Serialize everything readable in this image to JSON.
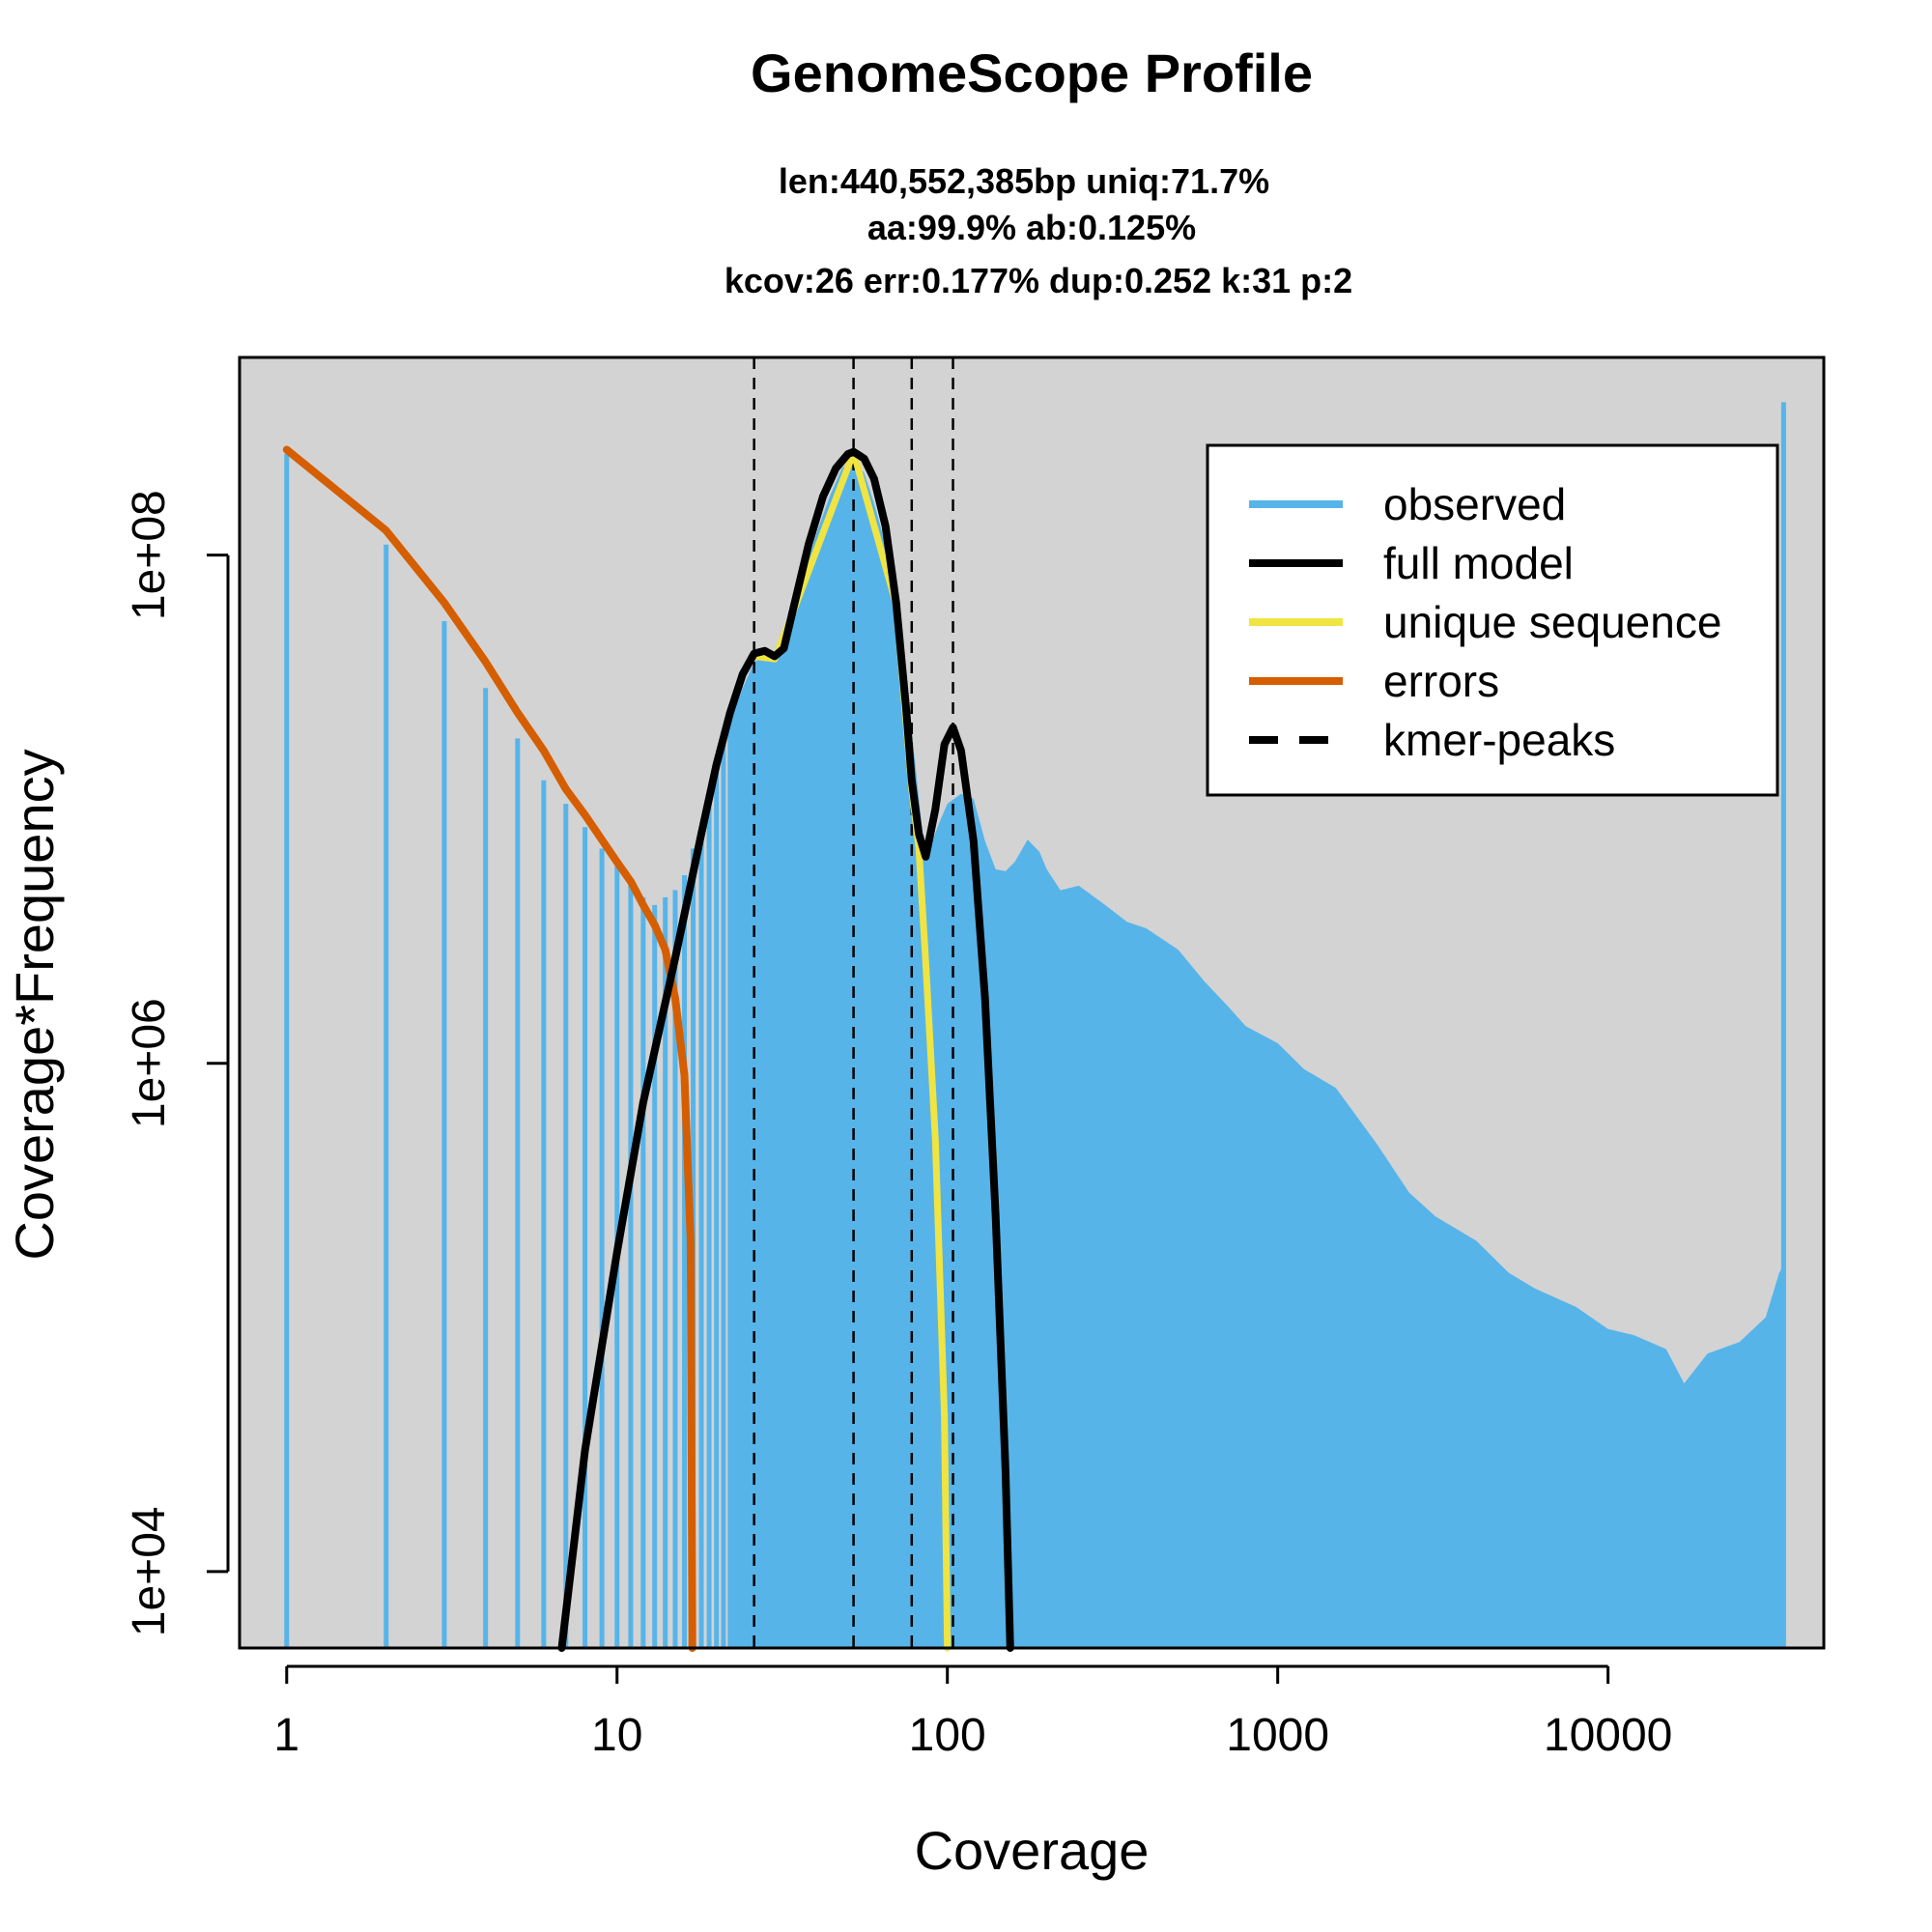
{
  "chart_data": {
    "type": "area",
    "title": "GenomeScope Profile",
    "subtitle_lines": [
      "len:440,552,385bp uniq:71.7%",
      "aa:99.9% ab:0.125%",
      "kcov:26 err:0.177%  dup:0.252  k:31 p:2"
    ],
    "xlabel": "Coverage",
    "ylabel": "Coverage*Frequency",
    "x_scale": "log",
    "y_scale": "log",
    "xlim": [
      0.72,
      45000
    ],
    "ylim": [
      5000,
      600000000
    ],
    "x_ticks": [
      1,
      10,
      100,
      1000,
      10000
    ],
    "x_tick_labels": [
      "1",
      "10",
      "100",
      "1000",
      "10000"
    ],
    "y_ticks": [
      10000,
      1000000,
      100000000
    ],
    "y_tick_labels": [
      "1e+04",
      "1e+06",
      "1e+08"
    ],
    "background": "#d3d3d3",
    "legend_position": "top-right",
    "legend": [
      {
        "label": "observed",
        "color": "#56b4e9",
        "style": "solid"
      },
      {
        "label": "full model",
        "color": "#000000",
        "style": "solid"
      },
      {
        "label": "unique sequence",
        "color": "#f0e442",
        "style": "solid"
      },
      {
        "label": "errors",
        "color": "#d55e00",
        "style": "solid"
      },
      {
        "label": "kmer-peaks",
        "color": "#000000",
        "style": "dashed"
      }
    ],
    "kmer_peaks": [
      26,
      52,
      78,
      104
    ],
    "observed_discrete": [
      [
        1,
        250000000
      ],
      [
        2,
        110000000
      ],
      [
        3,
        55000000
      ],
      [
        4,
        30000000
      ],
      [
        5,
        19000000
      ],
      [
        6,
        13000000
      ],
      [
        7,
        10500000
      ],
      [
        8,
        8500000
      ],
      [
        9,
        7000000
      ],
      [
        10,
        6000000
      ],
      [
        11,
        5200000
      ],
      [
        12,
        4500000
      ],
      [
        13,
        4200000
      ],
      [
        14,
        4500000
      ],
      [
        15,
        4800000
      ],
      [
        16,
        5500000
      ],
      [
        17,
        7000000
      ],
      [
        18,
        8500000
      ],
      [
        19,
        11000000
      ],
      [
        20,
        14000000
      ],
      [
        21,
        18000000
      ],
      [
        22,
        22000000
      ]
    ],
    "observed_profile": [
      [
        22,
        22000000
      ],
      [
        24,
        30000000
      ],
      [
        26,
        38000000
      ],
      [
        28,
        40000000
      ],
      [
        30,
        42000000
      ],
      [
        32,
        48000000
      ],
      [
        36,
        75000000
      ],
      [
        40,
        120000000
      ],
      [
        44,
        170000000
      ],
      [
        48,
        220000000
      ],
      [
        52,
        240000000
      ],
      [
        56,
        210000000
      ],
      [
        60,
        160000000
      ],
      [
        65,
        110000000
      ],
      [
        70,
        60000000
      ],
      [
        75,
        30000000
      ],
      [
        80,
        15000000
      ],
      [
        85,
        7000000
      ],
      [
        90,
        7500000
      ],
      [
        95,
        9000000
      ],
      [
        100,
        10500000
      ],
      [
        110,
        11500000
      ],
      [
        120,
        11000000
      ],
      [
        130,
        7500000
      ],
      [
        140,
        5800000
      ],
      [
        150,
        5700000
      ],
      [
        160,
        6200000
      ],
      [
        175,
        7600000
      ],
      [
        190,
        6800000
      ],
      [
        200,
        5800000
      ],
      [
        220,
        4800000
      ],
      [
        250,
        5000000
      ],
      [
        300,
        4200000
      ],
      [
        350,
        3600000
      ],
      [
        400,
        3400000
      ],
      [
        500,
        2800000
      ],
      [
        600,
        2100000
      ],
      [
        700,
        1700000
      ],
      [
        800,
        1400000
      ],
      [
        1000,
        1200000
      ],
      [
        1200,
        950000
      ],
      [
        1500,
        800000
      ],
      [
        2000,
        480000
      ],
      [
        2500,
        310000
      ],
      [
        3000,
        250000
      ],
      [
        4000,
        200000
      ],
      [
        5000,
        150000
      ],
      [
        6000,
        130000
      ],
      [
        8000,
        110000
      ],
      [
        10000,
        90000
      ],
      [
        12000,
        85000
      ],
      [
        15000,
        75000
      ],
      [
        17000,
        55000
      ],
      [
        20000,
        72000
      ],
      [
        25000,
        80000
      ],
      [
        30000,
        100000
      ],
      [
        33000,
        150000
      ],
      [
        34000,
        160000
      ]
    ],
    "observed_spike": [
      34000,
      400000000
    ],
    "full_model": [
      [
        6.8,
        5000
      ],
      [
        8,
        30000
      ],
      [
        10,
        180000
      ],
      [
        12,
        700000
      ],
      [
        15,
        2600000
      ],
      [
        18,
        8000000
      ],
      [
        20,
        15000000
      ],
      [
        22,
        24000000
      ],
      [
        24,
        34000000
      ],
      [
        26,
        41000000
      ],
      [
        28,
        42000000
      ],
      [
        30,
        40000000
      ],
      [
        32,
        43000000
      ],
      [
        34,
        60000000
      ],
      [
        38,
        110000000
      ],
      [
        42,
        170000000
      ],
      [
        46,
        220000000
      ],
      [
        50,
        250000000
      ],
      [
        52,
        255000000
      ],
      [
        56,
        240000000
      ],
      [
        60,
        200000000
      ],
      [
        65,
        130000000
      ],
      [
        70,
        65000000
      ],
      [
        75,
        25000000
      ],
      [
        78,
        13000000
      ],
      [
        82,
        8000000
      ],
      [
        86,
        6500000
      ],
      [
        92,
        10000000
      ],
      [
        98,
        18000000
      ],
      [
        104,
        21000000
      ],
      [
        110,
        17000000
      ],
      [
        120,
        7500000
      ],
      [
        130,
        1800000
      ],
      [
        140,
        250000
      ],
      [
        150,
        25000
      ],
      [
        155,
        5000
      ]
    ],
    "unique_sequence": [
      [
        26,
        40000000
      ],
      [
        30,
        39000000
      ],
      [
        34,
        59000000
      ],
      [
        52,
        254000000
      ],
      [
        70,
        64000000
      ],
      [
        78,
        12000000
      ],
      [
        82,
        7000000
      ],
      [
        86,
        2500000
      ],
      [
        92,
        500000
      ],
      [
        98,
        40000
      ],
      [
        100,
        5000
      ]
    ],
    "errors": [
      [
        1,
        260000000
      ],
      [
        2,
        125000000
      ],
      [
        3,
        65000000
      ],
      [
        4,
        38000000
      ],
      [
        5,
        24000000
      ],
      [
        6,
        17000000
      ],
      [
        7,
        12000000
      ],
      [
        8,
        9500000
      ],
      [
        10,
        6200000
      ],
      [
        11,
        5200000
      ],
      [
        12,
        4200000
      ],
      [
        13,
        3500000
      ],
      [
        14,
        2800000
      ],
      [
        15,
        1800000
      ],
      [
        16,
        900000
      ],
      [
        16.7,
        200000
      ],
      [
        16.9,
        5000
      ]
    ]
  }
}
